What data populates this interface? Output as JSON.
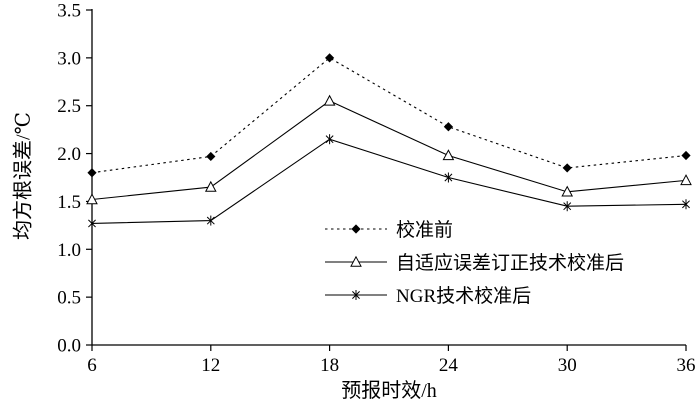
{
  "chart_data": {
    "type": "line",
    "title": "",
    "xlabel": "预报时效/h",
    "ylabel": "均方根误差/℃",
    "x": [
      6,
      12,
      18,
      24,
      30,
      36
    ],
    "xticks": [
      "6",
      "12",
      "18",
      "24",
      "30",
      "36"
    ],
    "ylim": [
      0,
      3.5
    ],
    "ytick_step": 0.5,
    "yticks": [
      "0.0",
      "0.5",
      "1.0",
      "1.5",
      "2.0",
      "2.5",
      "3.0",
      "3.5"
    ],
    "grid": false,
    "legend_position": "inside-lower-center-right",
    "line_color": "#000000",
    "series": [
      {
        "name": "校准前",
        "marker": "diamond-filled",
        "line": "dotted",
        "values": [
          1.8,
          1.97,
          3.0,
          2.28,
          1.85,
          1.98
        ]
      },
      {
        "name": "自适应误差订正技术校准后",
        "marker": "triangle-open",
        "line": "solid",
        "values": [
          1.52,
          1.65,
          2.55,
          1.98,
          1.6,
          1.72
        ]
      },
      {
        "name": "NGR技术校准后",
        "marker": "asterisk",
        "line": "solid",
        "values": [
          1.27,
          1.3,
          2.15,
          1.75,
          1.45,
          1.47
        ]
      }
    ]
  }
}
